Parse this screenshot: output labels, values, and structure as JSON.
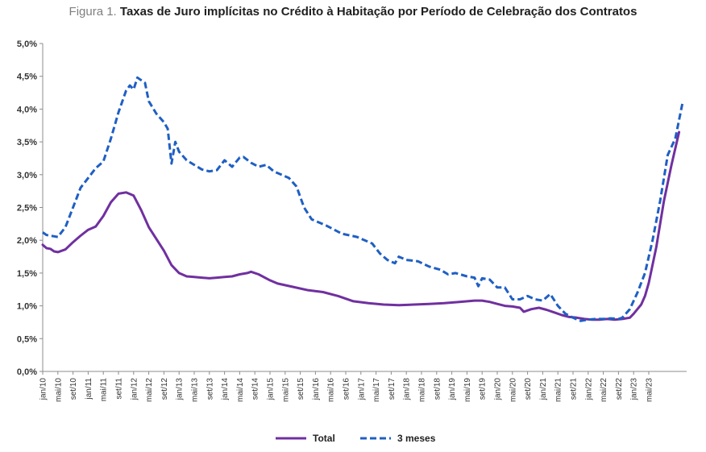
{
  "title_prefix": "Figura 1.",
  "title_main": "Taxas de Juro implícitas no Crédito à Habitação por Período de Celebração dos Contratos",
  "chart_data": {
    "type": "line",
    "title": "Taxas de Juro implícitas no Crédito à Habitação por Período de Celebração dos Contratos",
    "xlabel": "",
    "ylabel": "",
    "ylim": [
      0,
      5
    ],
    "y_ticks": [
      "0,0%",
      "0,5%",
      "1,0%",
      "1,5%",
      "2,0%",
      "2,5%",
      "3,0%",
      "3,5%",
      "4,0%",
      "4,5%",
      "5,0%"
    ],
    "x_tick_labels": [
      "jan/10",
      "mai/10",
      "set/10",
      "jan/11",
      "mai/11",
      "set/11",
      "jan/12",
      "mai/12",
      "set/12",
      "jan/13",
      "mai/13",
      "set/13",
      "jan/14",
      "mai/14",
      "set/14",
      "jan/15",
      "mai/15",
      "set/15",
      "jan/16",
      "mai/16",
      "set/16",
      "jan/17",
      "mai/17",
      "set/17",
      "jan/18",
      "mai/18",
      "set/18",
      "jan/19",
      "mai/19",
      "set/19",
      "jan/20",
      "mai/20",
      "set/20",
      "jan/21",
      "mai/21",
      "set/21",
      "jan/22",
      "mai/22",
      "set/22",
      "jan/23",
      "mai/23"
    ],
    "grid": false,
    "legend_position": "bottom",
    "series": [
      {
        "name": "Total",
        "color": "#7030a0",
        "style": "solid",
        "anchors": [
          [
            0,
            1.93
          ],
          [
            1,
            1.88
          ],
          [
            2,
            1.87
          ],
          [
            3,
            1.83
          ],
          [
            4,
            1.82
          ],
          [
            6,
            1.86
          ],
          [
            8,
            1.97
          ],
          [
            10,
            2.07
          ],
          [
            12,
            2.16
          ],
          [
            14,
            2.21
          ],
          [
            16,
            2.37
          ],
          [
            18,
            2.58
          ],
          [
            20,
            2.71
          ],
          [
            22,
            2.73
          ],
          [
            24,
            2.68
          ],
          [
            26,
            2.46
          ],
          [
            28,
            2.2
          ],
          [
            30,
            2.02
          ],
          [
            32,
            1.84
          ],
          [
            34,
            1.62
          ],
          [
            36,
            1.5
          ],
          [
            38,
            1.45
          ],
          [
            40,
            1.44
          ],
          [
            42,
            1.43
          ],
          [
            44,
            1.42
          ],
          [
            46,
            1.43
          ],
          [
            48,
            1.44
          ],
          [
            50,
            1.45
          ],
          [
            52,
            1.48
          ],
          [
            54,
            1.5
          ],
          [
            55,
            1.52
          ],
          [
            57,
            1.48
          ],
          [
            60,
            1.39
          ],
          [
            62,
            1.34
          ],
          [
            66,
            1.29
          ],
          [
            70,
            1.24
          ],
          [
            74,
            1.21
          ],
          [
            78,
            1.15
          ],
          [
            82,
            1.07
          ],
          [
            86,
            1.04
          ],
          [
            90,
            1.02
          ],
          [
            94,
            1.01
          ],
          [
            98,
            1.02
          ],
          [
            102,
            1.03
          ],
          [
            106,
            1.04
          ],
          [
            110,
            1.06
          ],
          [
            114,
            1.08
          ],
          [
            116,
            1.08
          ],
          [
            118,
            1.06
          ],
          [
            120,
            1.03
          ],
          [
            122,
            1.0
          ],
          [
            124,
            0.99
          ],
          [
            126,
            0.97
          ],
          [
            127,
            0.91
          ],
          [
            129,
            0.95
          ],
          [
            131,
            0.97
          ],
          [
            133,
            0.94
          ],
          [
            135,
            0.9
          ],
          [
            137,
            0.86
          ],
          [
            139,
            0.83
          ],
          [
            141,
            0.82
          ],
          [
            143,
            0.8
          ],
          [
            145,
            0.79
          ],
          [
            147,
            0.79
          ],
          [
            149,
            0.8
          ],
          [
            151,
            0.79
          ],
          [
            153,
            0.8
          ],
          [
            155,
            0.82
          ],
          [
            156,
            0.88
          ],
          [
            158,
            1.02
          ],
          [
            159,
            1.15
          ],
          [
            160,
            1.35
          ],
          [
            162,
            1.9
          ],
          [
            164,
            2.6
          ],
          [
            166,
            3.15
          ],
          [
            168,
            3.65
          ]
        ]
      },
      {
        "name": "3 meses",
        "color": "#1f5fc4",
        "style": "dashed",
        "anchors": [
          [
            0,
            2.12
          ],
          [
            1,
            2.08
          ],
          [
            3,
            2.06
          ],
          [
            4,
            2.05
          ],
          [
            6,
            2.2
          ],
          [
            8,
            2.5
          ],
          [
            10,
            2.8
          ],
          [
            12,
            2.95
          ],
          [
            14,
            3.1
          ],
          [
            16,
            3.2
          ],
          [
            18,
            3.55
          ],
          [
            20,
            3.95
          ],
          [
            22,
            4.28
          ],
          [
            23,
            4.36
          ],
          [
            24,
            4.3
          ],
          [
            25,
            4.48
          ],
          [
            27,
            4.4
          ],
          [
            28,
            4.12
          ],
          [
            30,
            3.93
          ],
          [
            32,
            3.8
          ],
          [
            33,
            3.7
          ],
          [
            34,
            3.17
          ],
          [
            35,
            3.5
          ],
          [
            36,
            3.35
          ],
          [
            38,
            3.22
          ],
          [
            40,
            3.15
          ],
          [
            42,
            3.08
          ],
          [
            44,
            3.05
          ],
          [
            46,
            3.07
          ],
          [
            48,
            3.22
          ],
          [
            50,
            3.12
          ],
          [
            52,
            3.26
          ],
          [
            53,
            3.27
          ],
          [
            55,
            3.18
          ],
          [
            57,
            3.12
          ],
          [
            59,
            3.15
          ],
          [
            61,
            3.05
          ],
          [
            63,
            3.0
          ],
          [
            65,
            2.95
          ],
          [
            67,
            2.82
          ],
          [
            69,
            2.5
          ],
          [
            71,
            2.32
          ],
          [
            75,
            2.22
          ],
          [
            79,
            2.1
          ],
          [
            83,
            2.05
          ],
          [
            87,
            1.95
          ],
          [
            89,
            1.8
          ],
          [
            91,
            1.7
          ],
          [
            93,
            1.65
          ],
          [
            94,
            1.75
          ],
          [
            96,
            1.7
          ],
          [
            99,
            1.68
          ],
          [
            102,
            1.6
          ],
          [
            105,
            1.55
          ],
          [
            107,
            1.48
          ],
          [
            109,
            1.5
          ],
          [
            112,
            1.45
          ],
          [
            114,
            1.43
          ],
          [
            115,
            1.3
          ],
          [
            116,
            1.42
          ],
          [
            118,
            1.4
          ],
          [
            120,
            1.28
          ],
          [
            122,
            1.28
          ],
          [
            124,
            1.1
          ],
          [
            126,
            1.1
          ],
          [
            128,
            1.15
          ],
          [
            130,
            1.1
          ],
          [
            132,
            1.08
          ],
          [
            134,
            1.18
          ],
          [
            136,
            1.0
          ],
          [
            138,
            0.88
          ],
          [
            140,
            0.82
          ],
          [
            142,
            0.77
          ],
          [
            144,
            0.79
          ],
          [
            146,
            0.8
          ],
          [
            148,
            0.8
          ],
          [
            150,
            0.81
          ],
          [
            152,
            0.8
          ],
          [
            153,
            0.82
          ],
          [
            155,
            0.95
          ],
          [
            157,
            1.2
          ],
          [
            159,
            1.5
          ],
          [
            161,
            2.0
          ],
          [
            163,
            2.6
          ],
          [
            165,
            3.3
          ],
          [
            167,
            3.55
          ],
          [
            169,
            4.12
          ]
        ]
      }
    ]
  }
}
